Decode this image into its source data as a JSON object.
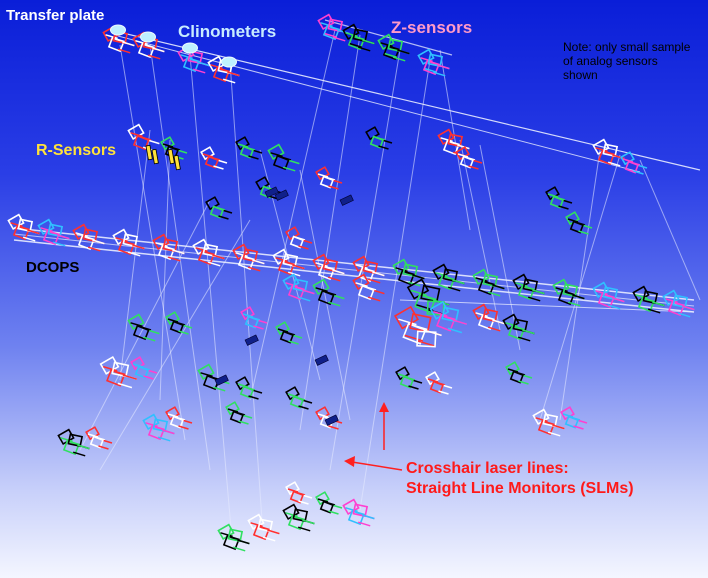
{
  "labels": {
    "transfer_plate": "Transfer plate",
    "clinometers": "Clinometers",
    "z_sensors": "Z-sensors",
    "r_sensors": "R-Sensors",
    "dcops": "DCOPS",
    "note": "Note: only small sample of analog sensors shown",
    "crosshair_line1": "Crosshair laser lines:",
    "crosshair_line2": "Straight Line Monitors (SLMs)"
  },
  "colors": {
    "background_top": "#0a1ed8",
    "background_bottom": "#f4f6ff",
    "transfer_plate_text": "#ffffff",
    "clinometers_text": "#c8ecff",
    "z_sensors_text": "#ff9ac8",
    "r_sensors_text": "#ffe23a",
    "dcops_text": "#000000",
    "crosshair_text": "#ff1a1a",
    "laser_line": "#e8ecff",
    "arrow": "#ff2020"
  },
  "icons": [
    "clinometer-disk-icon",
    "r-sensor-icon",
    "dcops-sensor-icon",
    "laser-arrow-icon"
  ]
}
